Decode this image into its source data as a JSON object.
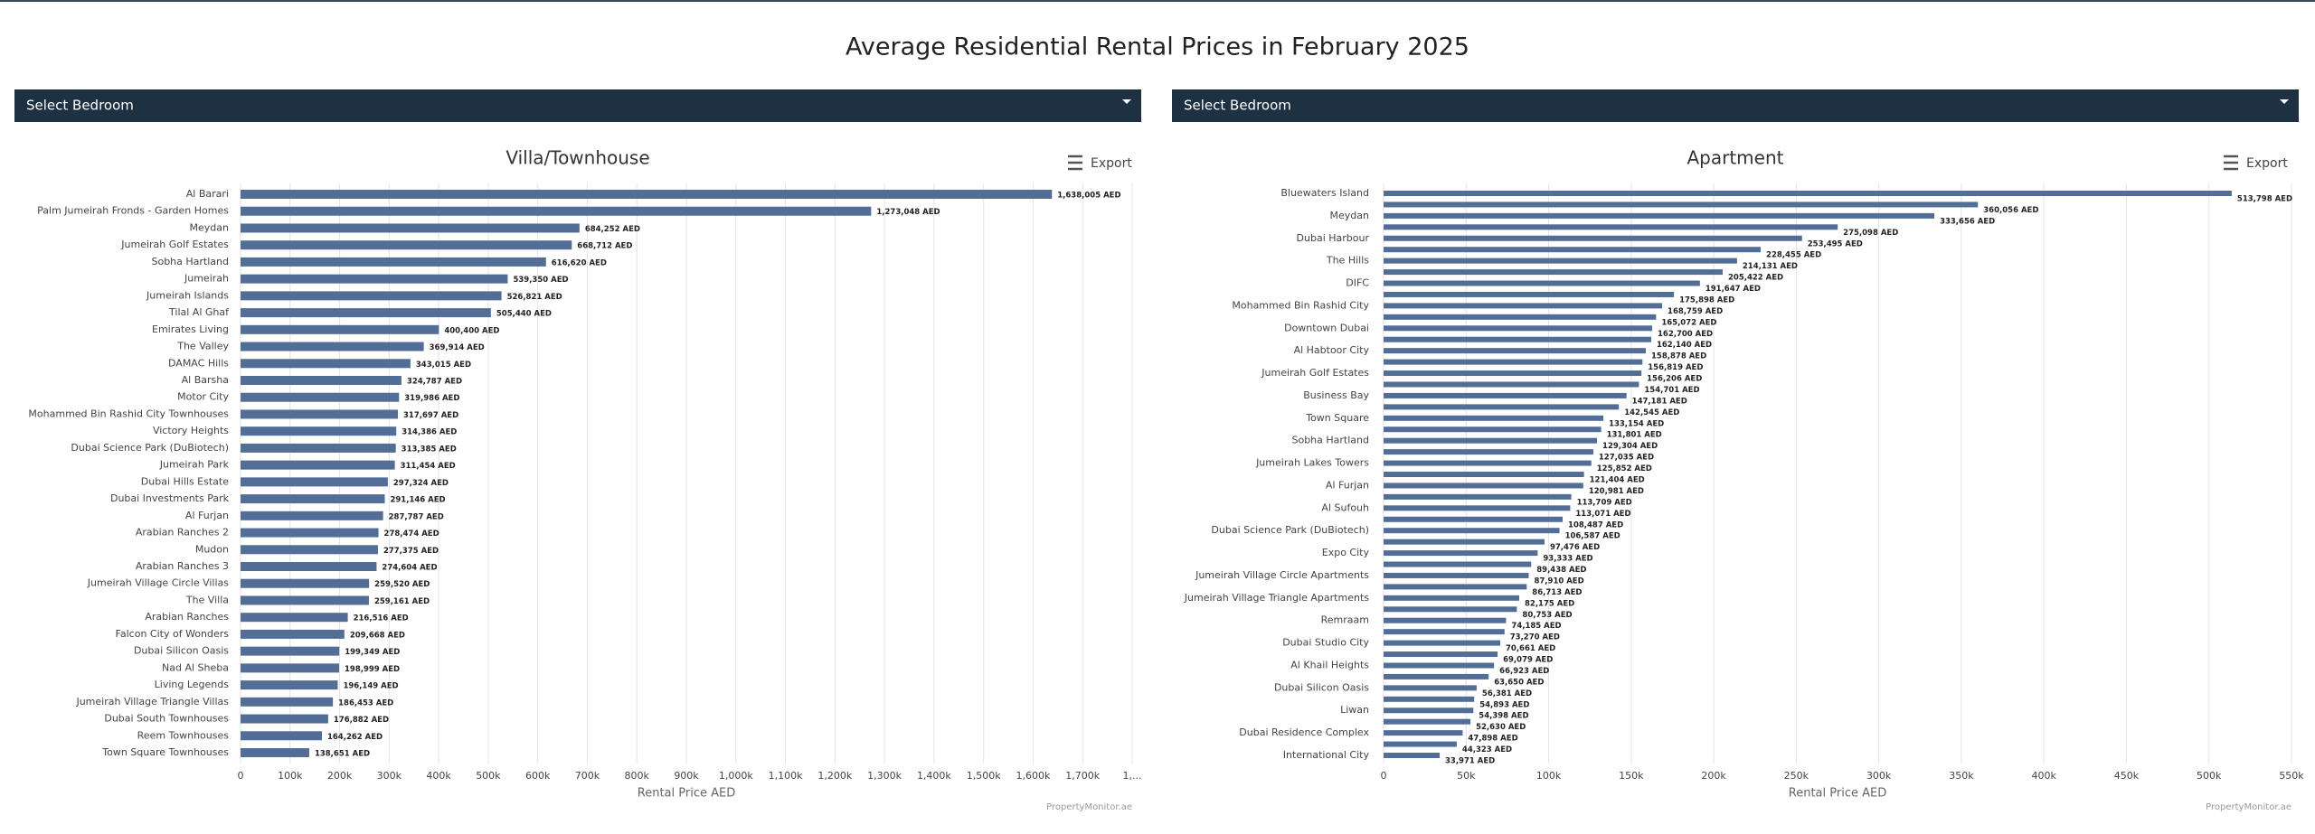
{
  "header": {
    "title": "Average Residential Rental Prices in February 2025"
  },
  "controls": [
    {
      "dropdown": "Select Bedroom",
      "export": "Export"
    },
    {
      "dropdown": "Select Bedroom",
      "export": "Export"
    }
  ],
  "chart_data": [
    {
      "type": "barh",
      "title": "Villa/Townhouse",
      "x_label": "Rental Price AED",
      "credit": "PropertyMonitor.ae",
      "color": "#536e96",
      "grid": true,
      "categories": [
        "Al Barari",
        "Palm Jumeirah Fronds - Garden Homes",
        "Meydan",
        "Jumeirah Golf Estates",
        "Sobha Hartland",
        "Jumeirah",
        "Jumeirah Islands",
        "Tilal Al Ghaf",
        "Emirates Living",
        "The Valley",
        "DAMAC Hills",
        "Al Barsha",
        "Motor City",
        "Mohammed Bin Rashid City Townhouses",
        "Victory Heights",
        "Dubai Science Park (DuBiotech)",
        "Jumeirah Park",
        "Dubai Hills Estate",
        "Dubai Investments Park",
        "Al Furjan",
        "Arabian Ranches 2",
        "Mudon",
        "Arabian Ranches 3",
        "Jumeirah Village Circle Villas",
        "The Villa",
        "Arabian Ranches",
        "Falcon City of Wonders",
        "Dubai Silicon Oasis",
        "Nad Al Sheba",
        "Living Legends",
        "Jumeirah Village Triangle Villas",
        "Dubai South Townhouses",
        "Reem Townhouses",
        "Town Square Townhouses"
      ],
      "values": [
        1638005,
        1273048,
        684252,
        668712,
        616620,
        539350,
        526821,
        505440,
        400400,
        369914,
        343015,
        324787,
        319986,
        317697,
        314386,
        313385,
        311454,
        297324,
        291146,
        287787,
        278474,
        277375,
        274604,
        259520,
        259161,
        216516,
        209668,
        199349,
        198999,
        196149,
        186453,
        176882,
        164262,
        138651
      ],
      "value_labels": [
        "1,638,005 AED",
        "1,273,048 AED",
        "684,252 AED",
        "668,712 AED",
        "616,620 AED",
        "539,350 AED",
        "526,821 AED",
        "505,440 AED",
        "400,400 AED",
        "369,914 AED",
        "343,015 AED",
        "324,787 AED",
        "319,986 AED",
        "317,697 AED",
        "314,386 AED",
        "313,385 AED",
        "311,454 AED",
        "297,324 AED",
        "291,146 AED",
        "287,787 AED",
        "278,474 AED",
        "277,375 AED",
        "274,604 AED",
        "259,520 AED",
        "259,161 AED",
        "216,516 AED",
        "209,668 AED",
        "199,349 AED",
        "198,999 AED",
        "196,149 AED",
        "186,453 AED",
        "176,882 AED",
        "164,262 AED",
        "138,651 AED"
      ],
      "xlim": [
        0,
        1800000
      ],
      "xticks": [
        0,
        {
          "value": 100000,
          "label": "100k"
        },
        {
          "value": 200000,
          "label": "200k"
        },
        {
          "value": 300000,
          "label": "300k"
        },
        {
          "value": 400000,
          "label": "400k"
        },
        {
          "value": 500000,
          "label": "500k"
        },
        {
          "value": 600000,
          "label": "600k"
        },
        {
          "value": 700000,
          "label": "700k"
        },
        {
          "value": 800000,
          "label": "800k"
        },
        {
          "value": 900000,
          "label": "900k"
        },
        {
          "value": 1000000,
          "label": "1,000k"
        },
        {
          "value": 1100000,
          "label": "1,100k"
        },
        {
          "value": 1200000,
          "label": "1,200k"
        },
        {
          "value": 1300000,
          "label": "1,300k"
        },
        {
          "value": 1400000,
          "label": "1,400k"
        },
        {
          "value": 1500000,
          "label": "1,500k"
        },
        {
          "value": 1600000,
          "label": "1,600k"
        },
        {
          "value": 1700000,
          "label": "1,700k"
        },
        {
          "value": 1800000,
          "label": "1,..."
        }
      ]
    },
    {
      "type": "barh",
      "title": "Apartment",
      "x_label": "Rental Price AED",
      "credit": "PropertyMonitor.ae",
      "color": "#536e96",
      "grid": true,
      "categories": [
        "Bluewaters Island",
        null,
        "Meydan",
        null,
        "Dubai Harbour",
        null,
        "The Hills",
        null,
        "DIFC",
        null,
        "Mohammed Bin Rashid City",
        null,
        "Downtown Dubai",
        null,
        "Al Habtoor City",
        null,
        "Jumeirah Golf Estates",
        null,
        "Business Bay",
        null,
        "Town Square",
        null,
        "Sobha Hartland",
        null,
        "Jumeirah Lakes Towers",
        null,
        "Al Furjan",
        null,
        "Al Sufouh",
        null,
        "Dubai Science Park (DuBiotech)",
        null,
        "Expo City",
        null,
        "Jumeirah Village Circle Apartments",
        null,
        "Jumeirah Village Triangle Apartments",
        null,
        "Remraam",
        null,
        "Dubai Studio City",
        null,
        "Al Khail Heights",
        null,
        "Dubai Silicon Oasis",
        null,
        "Liwan",
        null,
        "Dubai Residence Complex",
        null,
        "International City"
      ],
      "values": [
        513798,
        360056,
        333656,
        275098,
        253495,
        228455,
        214131,
        205422,
        191647,
        175898,
        168759,
        165072,
        162700,
        162140,
        158878,
        156819,
        156206,
        154701,
        147181,
        142545,
        133154,
        131801,
        129304,
        127035,
        125852,
        121404,
        120981,
        113709,
        113071,
        108487,
        106587,
        97476,
        93333,
        89438,
        87910,
        86713,
        82175,
        80753,
        74185,
        73270,
        70661,
        69079,
        66923,
        63650,
        56381,
        54893,
        54398,
        52630,
        47898,
        44323,
        33971
      ],
      "value_labels": [
        "513,798 AED",
        "360,056 AED",
        "333,656 AED",
        "275,098 AED",
        "253,495 AED",
        "228,455 AED",
        "214,131 AED",
        "205,422 AED",
        "191,647 AED",
        "175,898 AED",
        "168,759 AED",
        "165,072 AED",
        "162,700 AED",
        "162,140 AED",
        "158,878 AED",
        "156,819 AED",
        "156,206 AED",
        "154,701 AED",
        "147,181 AED",
        "142,545 AED",
        "133,154 AED",
        "131,801 AED",
        "129,304 AED",
        "127,035 AED",
        "125,852 AED",
        "121,404 AED",
        "120,981 AED",
        "113,709 AED",
        "113,071 AED",
        "108,487 AED",
        "106,587 AED",
        "97,476 AED",
        "93,333 AED",
        "89,438 AED",
        "87,910 AED",
        "86,713 AED",
        "82,175 AED",
        "80,753 AED",
        "74,185 AED",
        "73,270 AED",
        "70,661 AED",
        "69,079 AED",
        "66,923 AED",
        "63,650 AED",
        "56,381 AED",
        "54,893 AED",
        "54,398 AED",
        "52,630 AED",
        "47,898 AED",
        "44,323 AED",
        "33,971 AED"
      ],
      "xlim": [
        0,
        550000
      ],
      "xticks": [
        0,
        {
          "value": 50000,
          "label": "50k"
        },
        {
          "value": 100000,
          "label": "100k"
        },
        {
          "value": 150000,
          "label": "150k"
        },
        {
          "value": 200000,
          "label": "200k"
        },
        {
          "value": 250000,
          "label": "250k"
        },
        {
          "value": 300000,
          "label": "300k"
        },
        {
          "value": 350000,
          "label": "350k"
        },
        {
          "value": 400000,
          "label": "400k"
        },
        {
          "value": 450000,
          "label": "450k"
        },
        {
          "value": 500000,
          "label": "500k"
        },
        {
          "value": 550000,
          "label": "550k"
        }
      ]
    }
  ]
}
